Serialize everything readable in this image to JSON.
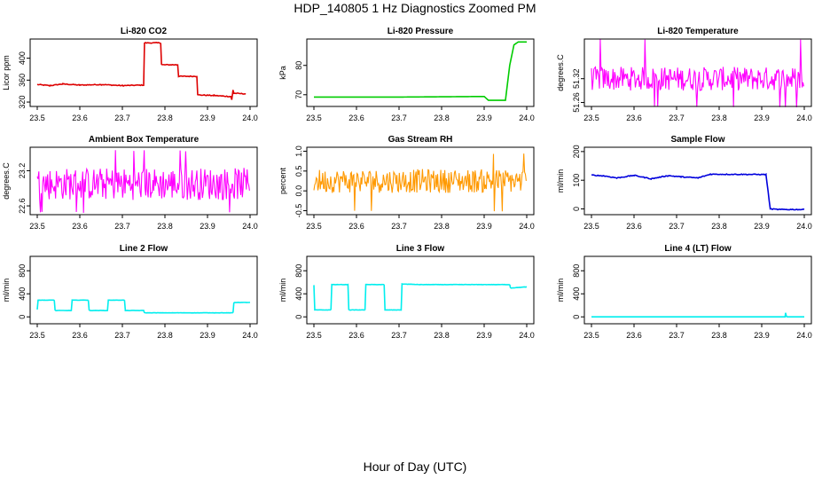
{
  "page": {
    "title": "HDP_140805  1 Hz Diagnostics Zoomed PM",
    "x_axis_label": "Hour of Day (UTC)"
  },
  "chart_data": [
    {
      "type": "line",
      "title": "Li-820 CO2",
      "ylabel": "Licor ppm",
      "color": "#dd0000",
      "xlim": [
        23.5,
        24.0
      ],
      "ylim": [
        312,
        435
      ],
      "yticks": [
        320,
        360,
        400
      ],
      "ytick_labels": [
        "320",
        "360",
        "400"
      ],
      "xticks": [
        23.5,
        23.6,
        23.7,
        23.8,
        23.9,
        24.0
      ],
      "noise": 1.5,
      "x": [
        23.5,
        23.53,
        23.56,
        23.6,
        23.65,
        23.7,
        23.75,
        23.752,
        23.79,
        23.792,
        23.83,
        23.832,
        23.875,
        23.877,
        23.915,
        23.955,
        23.957,
        23.96,
        23.962,
        23.99
      ],
      "values": [
        352,
        350,
        353,
        351,
        352,
        350,
        351,
        428,
        428,
        388,
        388,
        367,
        367,
        333,
        332,
        330,
        324,
        342,
        336,
        335
      ]
    },
    {
      "type": "line",
      "title": "Li-820 Pressure",
      "ylabel": "kPa",
      "color": "#00cc00",
      "xlim": [
        23.5,
        24.0
      ],
      "ylim": [
        66,
        89
      ],
      "yticks": [
        70,
        80
      ],
      "ytick_labels": [
        "70",
        "80"
      ],
      "xticks": [
        23.5,
        23.6,
        23.7,
        23.8,
        23.9,
        24.0
      ],
      "noise": 0,
      "x": [
        23.5,
        23.7,
        23.9,
        23.91,
        23.95,
        23.96,
        23.97,
        23.98,
        24.0
      ],
      "values": [
        69.2,
        69.2,
        69.4,
        68.1,
        68.1,
        80,
        87,
        88,
        88
      ]
    },
    {
      "type": "noise",
      "title": "Li-820 Temperature",
      "ylabel": "degrees.C",
      "color": "#ff00ff",
      "xlim": [
        23.5,
        24.0
      ],
      "ylim": [
        51.25,
        51.42
      ],
      "yticks": [
        51.26,
        51.32
      ],
      "ytick_labels": [
        "51.26",
        "51.32"
      ],
      "xticks": [
        23.5,
        23.6,
        23.7,
        23.8,
        23.9,
        24.0
      ],
      "band": [
        51.29,
        51.35
      ],
      "spikes": [
        51.25,
        51.42
      ]
    },
    {
      "type": "noise",
      "title": "Ambient Box Temperature",
      "ylabel": "degrees.C",
      "color": "#ff00ff",
      "xlim": [
        23.5,
        24.0
      ],
      "ylim": [
        22.45,
        23.6
      ],
      "yticks": [
        22.6,
        23.2
      ],
      "ytick_labels": [
        "22.6",
        "23.2"
      ],
      "xticks": [
        23.5,
        23.6,
        23.7,
        23.8,
        23.9,
        24.0
      ],
      "band": [
        22.7,
        23.25
      ],
      "spikes": [
        22.5,
        23.55
      ]
    },
    {
      "type": "noise",
      "title": "Gas Stream RH",
      "ylabel": "percent",
      "color": "#ff9900",
      "xlim": [
        23.5,
        24.0
      ],
      "ylim": [
        -0.6,
        1.1
      ],
      "yticks": [
        -0.5,
        0.0,
        0.5,
        1.0
      ],
      "ytick_labels": [
        "-0.5",
        "0.0",
        "0.5",
        "1.0"
      ],
      "xticks": [
        23.5,
        23.6,
        23.7,
        23.8,
        23.9,
        24.0
      ],
      "band": [
        -0.05,
        0.55
      ],
      "spikes": [
        -0.5,
        0.95
      ]
    },
    {
      "type": "line",
      "title": "Sample Flow",
      "ylabel": "ml/min",
      "color": "#0000dd",
      "xlim": [
        23.5,
        24.0
      ],
      "ylim": [
        -20,
        215
      ],
      "yticks": [
        0,
        100,
        200
      ],
      "ytick_labels": [
        "0",
        "100",
        "200"
      ],
      "xticks": [
        23.5,
        23.6,
        23.7,
        23.8,
        23.9,
        24.0
      ],
      "noise": 3,
      "x": [
        23.5,
        23.53,
        23.56,
        23.6,
        23.64,
        23.68,
        23.71,
        23.75,
        23.78,
        23.91,
        23.92,
        23.94,
        24.0
      ],
      "values": [
        118,
        115,
        108,
        117,
        105,
        116,
        112,
        108,
        121,
        120,
        0,
        -2,
        -2
      ]
    },
    {
      "type": "line",
      "title": "Line 2 Flow",
      "ylabel": "ml/min",
      "color": "#00eeee",
      "xlim": [
        23.5,
        24.0
      ],
      "ylim": [
        -120,
        1050
      ],
      "yticks": [
        0,
        400,
        800
      ],
      "ytick_labels": [
        "0",
        "400",
        "800"
      ],
      "xticks": [
        23.5,
        23.6,
        23.7,
        23.8,
        23.9,
        24.0
      ],
      "noise": 4,
      "x": [
        23.5,
        23.502,
        23.54,
        23.542,
        23.58,
        23.582,
        23.62,
        23.622,
        23.665,
        23.667,
        23.705,
        23.707,
        23.75,
        23.752,
        23.96,
        23.962,
        24.0
      ],
      "values": [
        130,
        290,
        290,
        110,
        110,
        290,
        290,
        110,
        110,
        290,
        290,
        110,
        110,
        70,
        70,
        250,
        250
      ]
    },
    {
      "type": "line",
      "title": "Line 3 Flow",
      "ylabel": "ml/min",
      "color": "#00eeee",
      "xlim": [
        23.5,
        24.0
      ],
      "ylim": [
        -120,
        1050
      ],
      "yticks": [
        0,
        400,
        800
      ],
      "ytick_labels": [
        "0",
        "400",
        "800"
      ],
      "xticks": [
        23.5,
        23.6,
        23.7,
        23.8,
        23.9,
        24.0
      ],
      "noise": 5,
      "x": [
        23.5,
        23.502,
        23.54,
        23.542,
        23.58,
        23.582,
        23.62,
        23.622,
        23.665,
        23.667,
        23.705,
        23.707,
        23.75,
        23.96,
        23.962,
        24.0
      ],
      "values": [
        550,
        120,
        120,
        560,
        560,
        120,
        120,
        560,
        560,
        120,
        120,
        570,
        560,
        560,
        500,
        520
      ]
    },
    {
      "type": "line",
      "title": "Line 4 (LT) Flow",
      "ylabel": "ml/min",
      "color": "#00eeee",
      "xlim": [
        23.5,
        24.0
      ],
      "ylim": [
        -120,
        1050
      ],
      "yticks": [
        0,
        400,
        800
      ],
      "ytick_labels": [
        "0",
        "400",
        "800"
      ],
      "xticks": [
        23.5,
        23.6,
        23.7,
        23.8,
        23.9,
        24.0
      ],
      "noise": 0,
      "x": [
        23.5,
        23.955,
        23.956,
        23.958,
        23.96,
        24.0
      ],
      "values": [
        0,
        0,
        70,
        10,
        0,
        0
      ]
    }
  ]
}
